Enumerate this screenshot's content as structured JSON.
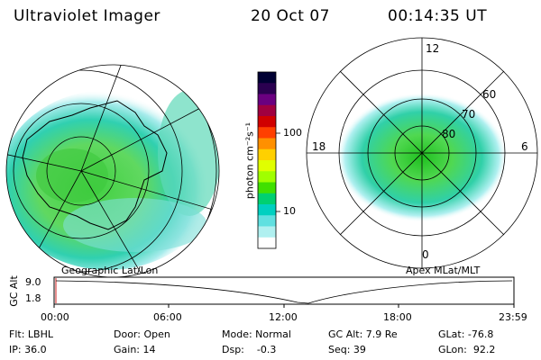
{
  "header": {
    "title": "Ultraviolet Imager",
    "date": "20 Oct 07",
    "time": "00:14:35 UT"
  },
  "left_panel": {
    "caption": "Geographic Lat/Lon"
  },
  "right_panel": {
    "caption": "Apex MLat/MLT",
    "mlt_labels": {
      "top": "12",
      "left": "18",
      "right": "6",
      "bottom": "0"
    },
    "lat_labels": [
      "60",
      "70",
      "80"
    ]
  },
  "colorbar": {
    "unit": "photon cm⁻²s⁻¹",
    "ticks": [
      "100",
      "10"
    ],
    "colors": [
      "#000033",
      "#2a0050",
      "#6a0080",
      "#a00040",
      "#d00000",
      "#ff4000",
      "#ff9000",
      "#ffd000",
      "#e0ff00",
      "#a0ff00",
      "#40e000",
      "#00d070",
      "#00d0c0",
      "#60e0e0",
      "#b0f0f0",
      "#ffffff"
    ]
  },
  "gc_alt_plot": {
    "label": "GC Alt",
    "y_ticks": [
      "9.0",
      "1.8"
    ],
    "x_ticks": [
      "00:00",
      "06:00",
      "12:00",
      "18:00",
      "23:59"
    ]
  },
  "status": {
    "filter": "Flt: LBHL",
    "door": "Door: Open",
    "mode": "Mode: Normal",
    "gc_alt": "GC Alt: 7.9 Re",
    "glat": "GLat: -76.8",
    "ip": "IP: 36.0",
    "gain": "Gain: 14",
    "dsp": "Dsp:    -0.3",
    "seq": "Seq: 39",
    "glon": "GLon:  92.2"
  }
}
